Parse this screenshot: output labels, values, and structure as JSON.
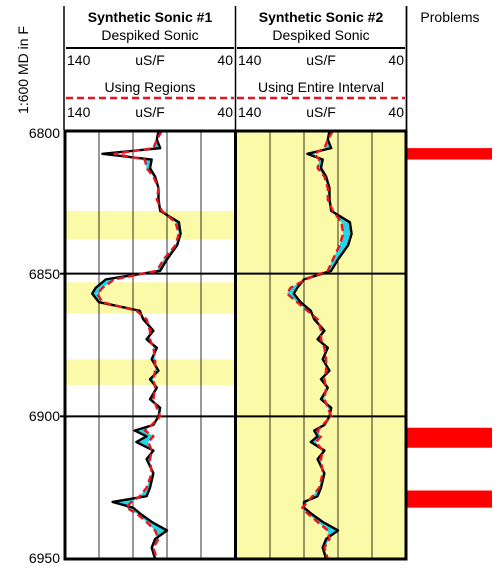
{
  "chart_data": {
    "type": "line",
    "depth_axis": {
      "label": "1:600 MD in F",
      "range": [
        6800,
        6950
      ],
      "ticks": [
        "6800",
        "6850",
        "6900",
        "6950"
      ]
    },
    "colors": {
      "region_fill": "#fafaa8",
      "despiked_line": "#000000",
      "synthetic_line": "#e8141e",
      "difference_fill": "#22d4e6",
      "problem_bar": "#ff0000"
    },
    "tracks": [
      {
        "title": "Synthetic Sonic #1",
        "curve1": {
          "name": "Despiked Sonic",
          "min": "140",
          "unit": "uS/F",
          "max": "40"
        },
        "curve2": {
          "name": "Using Regions",
          "min": "140",
          "unit": "uS/F",
          "max": "40"
        },
        "x_range": [
          140,
          40
        ],
        "regions": [
          [
            6828,
            6838
          ],
          [
            6853,
            6864
          ],
          [
            6880,
            6889
          ]
        ]
      },
      {
        "title": "Synthetic Sonic #2",
        "curve1": {
          "name": "Despiked Sonic",
          "min": "140",
          "unit": "uS/F",
          "max": "40"
        },
        "curve2": {
          "name": "Using Entire Interval",
          "min": "140",
          "unit": "uS/F",
          "max": "40"
        },
        "x_range": [
          140,
          40
        ],
        "regions": [
          [
            6800,
            6950
          ]
        ]
      }
    ],
    "problems": {
      "title": "Problems",
      "intervals": [
        [
          6806,
          6810
        ],
        [
          6904,
          6911
        ],
        [
          6926,
          6932
        ]
      ]
    },
    "series": [
      {
        "track": 0,
        "curve": "despiked",
        "depth": [
          6800,
          6803,
          6806,
          6808,
          6810,
          6813,
          6816,
          6820,
          6824,
          6828,
          6832,
          6836,
          6840,
          6845,
          6849,
          6852,
          6855,
          6857,
          6860,
          6863,
          6866,
          6870,
          6873,
          6876,
          6880,
          6884,
          6887,
          6890,
          6894,
          6897,
          6900,
          6903,
          6905,
          6907,
          6909,
          6912,
          6915,
          6920,
          6925,
          6928,
          6930,
          6932,
          6934,
          6937,
          6940,
          6943,
          6946,
          6950
        ],
        "value": [
          85,
          86,
          84,
          118,
          89,
          90,
          87,
          85,
          85,
          84,
          73,
          72,
          74,
          80,
          84,
          116,
          122,
          124,
          120,
          96,
          94,
          88,
          92,
          86,
          89,
          85,
          90,
          86,
          90,
          84,
          85,
          88,
          99,
          92,
          98,
          88,
          92,
          88,
          90,
          92,
          112,
          100,
          96,
          89,
          80,
          87,
          89,
          87
        ]
      },
      {
        "track": 0,
        "curve": "synthetic",
        "depth": [
          6800,
          6803,
          6806,
          6808,
          6810,
          6813,
          6816,
          6820,
          6824,
          6828,
          6832,
          6836,
          6840,
          6845,
          6849,
          6852,
          6855,
          6857,
          6860,
          6863,
          6866,
          6870,
          6873,
          6876,
          6880,
          6884,
          6887,
          6890,
          6894,
          6897,
          6900,
          6903,
          6905,
          6907,
          6909,
          6912,
          6915,
          6920,
          6925,
          6928,
          6930,
          6932,
          6934,
          6937,
          6940,
          6943,
          6946,
          6950
        ],
        "value": [
          83,
          86,
          88,
          111,
          93,
          92,
          88,
          85,
          86,
          83,
          75,
          73,
          75,
          82,
          86,
          111,
          118,
          121,
          118,
          98,
          92,
          90,
          90,
          88,
          87,
          87,
          88,
          87,
          88,
          86,
          84,
          89,
          93,
          88,
          91,
          89,
          90,
          89,
          92,
          96,
          101,
          104,
          98,
          92,
          87,
          85,
          88,
          86
        ]
      },
      {
        "track": 1,
        "curve": "despiked",
        "depth": [
          6800,
          6803,
          6806,
          6808,
          6810,
          6813,
          6816,
          6820,
          6824,
          6828,
          6832,
          6836,
          6840,
          6845,
          6849,
          6852,
          6855,
          6857,
          6860,
          6863,
          6866,
          6870,
          6873,
          6876,
          6880,
          6884,
          6887,
          6890,
          6894,
          6897,
          6900,
          6903,
          6905,
          6907,
          6909,
          6912,
          6915,
          6920,
          6925,
          6928,
          6930,
          6932,
          6934,
          6937,
          6940,
          6943,
          6946,
          6950
        ],
        "value": [
          85,
          86,
          84,
          98,
          89,
          90,
          87,
          85,
          85,
          84,
          73,
          72,
          74,
          80,
          84,
          100,
          104,
          106,
          102,
          96,
          94,
          88,
          92,
          86,
          89,
          85,
          90,
          86,
          90,
          84,
          85,
          88,
          94,
          92,
          96,
          88,
          92,
          88,
          90,
          92,
          100,
          100,
          96,
          89,
          80,
          87,
          89,
          87
        ]
      },
      {
        "track": 1,
        "curve": "synthetic",
        "depth": [
          6800,
          6803,
          6806,
          6808,
          6810,
          6813,
          6816,
          6820,
          6824,
          6828,
          6832,
          6836,
          6840,
          6845,
          6849,
          6852,
          6855,
          6857,
          6860,
          6863,
          6866,
          6870,
          6873,
          6876,
          6880,
          6884,
          6887,
          6890,
          6894,
          6897,
          6900,
          6903,
          6905,
          6907,
          6909,
          6912,
          6915,
          6920,
          6925,
          6928,
          6930,
          6932,
          6934,
          6937,
          6940,
          6943,
          6946,
          6950
        ],
        "value": [
          83,
          86,
          88,
          94,
          91,
          92,
          88,
          86,
          86,
          83,
          78,
          77,
          79,
          83,
          86,
          99,
          108,
          110,
          104,
          98,
          92,
          90,
          90,
          88,
          87,
          87,
          88,
          87,
          88,
          86,
          84,
          89,
          92,
          90,
          93,
          89,
          90,
          89,
          91,
          95,
          98,
          101,
          98,
          92,
          86,
          85,
          88,
          86
        ]
      }
    ]
  }
}
